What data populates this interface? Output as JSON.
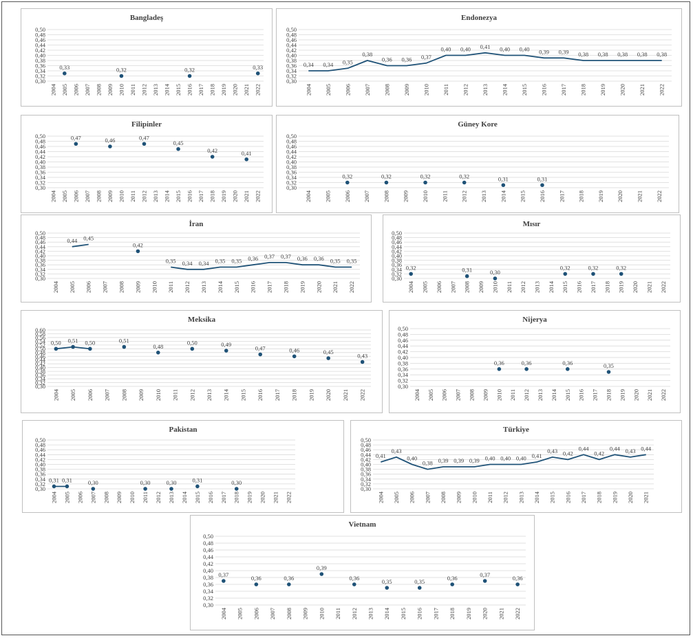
{
  "colors": {
    "series": "#1f5277",
    "grid": "#d9d9d9",
    "text": "#404040",
    "border": "#bfbfbf"
  },
  "chart_data": [
    {
      "id": "bangladesh",
      "type": "scatter",
      "title": "Bangladeş",
      "x": [
        "2004",
        "2005",
        "2006",
        "2007",
        "2008",
        "2009",
        "2010",
        "2011",
        "2012",
        "2013",
        "2014",
        "2015",
        "2016",
        "2017",
        "2018",
        "2019",
        "2020",
        "2021",
        "2022"
      ],
      "ylim": [
        0.3,
        0.5
      ],
      "yticks": [
        "0,30",
        "0,32",
        "0,34",
        "0,36",
        "0,38",
        "0,40",
        "0,42",
        "0,44",
        "0,46",
        "0,48",
        "0,50"
      ],
      "points": [
        {
          "x": "2005",
          "y": 0.33,
          "label": "0,33"
        },
        {
          "x": "2010",
          "y": 0.32,
          "label": "0,32"
        },
        {
          "x": "2016",
          "y": 0.32,
          "label": "0,32"
        },
        {
          "x": "2022",
          "y": 0.33,
          "label": "0,33"
        }
      ]
    },
    {
      "id": "indonesia",
      "type": "line",
      "title": "Endonezya",
      "x": [
        "2004",
        "2005",
        "2006",
        "2007",
        "2008",
        "2009",
        "2010",
        "2011",
        "2012",
        "2013",
        "2014",
        "2015",
        "2016",
        "2017",
        "2018",
        "2019",
        "2020",
        "2021",
        "2022"
      ],
      "ylim": [
        0.3,
        0.5
      ],
      "yticks": [
        "0,30",
        "0,32",
        "0,34",
        "0,36",
        "0,38",
        "0,40",
        "0,42",
        "0,44",
        "0,46",
        "0,48",
        "0,50"
      ],
      "points": [
        {
          "x": "2004",
          "y": 0.34,
          "label": "0,34"
        },
        {
          "x": "2005",
          "y": 0.34,
          "label": "0,34"
        },
        {
          "x": "2006",
          "y": 0.35,
          "label": "0,35"
        },
        {
          "x": "2007",
          "y": 0.38,
          "label": "0,38"
        },
        {
          "x": "2008",
          "y": 0.36,
          "label": "0,36"
        },
        {
          "x": "2009",
          "y": 0.36,
          "label": "0,36"
        },
        {
          "x": "2010",
          "y": 0.37,
          "label": "0,37"
        },
        {
          "x": "2011",
          "y": 0.4,
          "label": "0,40"
        },
        {
          "x": "2012",
          "y": 0.4,
          "label": "0,40"
        },
        {
          "x": "2013",
          "y": 0.41,
          "label": "0,41"
        },
        {
          "x": "2014",
          "y": 0.4,
          "label": "0,40"
        },
        {
          "x": "2015",
          "y": 0.4,
          "label": "0,40"
        },
        {
          "x": "2016",
          "y": 0.39,
          "label": "0,39"
        },
        {
          "x": "2017",
          "y": 0.39,
          "label": "0,39"
        },
        {
          "x": "2018",
          "y": 0.38,
          "label": "0,38"
        },
        {
          "x": "2019",
          "y": 0.38,
          "label": "0,38"
        },
        {
          "x": "2020",
          "y": 0.38,
          "label": "0,38"
        },
        {
          "x": "2021",
          "y": 0.38,
          "label": "0,38"
        },
        {
          "x": "2022",
          "y": 0.38,
          "label": "0,38"
        }
      ]
    },
    {
      "id": "philippines",
      "type": "scatter",
      "title": "Filipinler",
      "x": [
        "2004",
        "2005",
        "2006",
        "2007",
        "2008",
        "2009",
        "2010",
        "2011",
        "2012",
        "2013",
        "2014",
        "2015",
        "2016",
        "2017",
        "2018",
        "2019",
        "2020",
        "2021",
        "2022"
      ],
      "ylim": [
        0.3,
        0.5
      ],
      "yticks": [
        "0,30",
        "0,32",
        "0,34",
        "0,36",
        "0,38",
        "0,40",
        "0,42",
        "0,44",
        "0,46",
        "0,48",
        "0,50"
      ],
      "points": [
        {
          "x": "2006",
          "y": 0.47,
          "label": "0,47"
        },
        {
          "x": "2009",
          "y": 0.46,
          "label": "0,46"
        },
        {
          "x": "2012",
          "y": 0.47,
          "label": "0,47"
        },
        {
          "x": "2015",
          "y": 0.45,
          "label": "0,45"
        },
        {
          "x": "2018",
          "y": 0.42,
          "label": "0,42"
        },
        {
          "x": "2021",
          "y": 0.41,
          "label": "0,41"
        }
      ]
    },
    {
      "id": "south-korea",
      "type": "scatter",
      "title": "Güney Kore",
      "x": [
        "2004",
        "2005",
        "2006",
        "2007",
        "2008",
        "2009",
        "2010",
        "2011",
        "2012",
        "2013",
        "2014",
        "2015",
        "2016",
        "2017",
        "2018",
        "2019",
        "2020",
        "2021",
        "2022"
      ],
      "ylim": [
        0.3,
        0.5
      ],
      "yticks": [
        "0,30",
        "0,32",
        "0,34",
        "0,36",
        "0,38",
        "0,40",
        "0,42",
        "0,44",
        "0,46",
        "0,48",
        "0,50"
      ],
      "points": [
        {
          "x": "2006",
          "y": 0.32,
          "label": "0,32"
        },
        {
          "x": "2008",
          "y": 0.32,
          "label": "0,32"
        },
        {
          "x": "2010",
          "y": 0.32,
          "label": "0,32"
        },
        {
          "x": "2012",
          "y": 0.32,
          "label": "0,32"
        },
        {
          "x": "2014",
          "y": 0.31,
          "label": "0,31"
        },
        {
          "x": "2016",
          "y": 0.31,
          "label": "0,31"
        }
      ]
    },
    {
      "id": "iran",
      "type": "line",
      "title": "İran",
      "x": [
        "2004",
        "2005",
        "2006",
        "2007",
        "2008",
        "2009",
        "2010",
        "2011",
        "2012",
        "2013",
        "2014",
        "2015",
        "2016",
        "2017",
        "2018",
        "2019",
        "2020",
        "2021",
        "2022"
      ],
      "ylim": [
        0.3,
        0.5
      ],
      "yticks": [
        "0,30",
        "0,32",
        "0,34",
        "0,36",
        "0,38",
        "0,40",
        "0,42",
        "0,44",
        "0,46",
        "0,48",
        "0,50"
      ],
      "segments": [
        [
          {
            "x": "2005",
            "y": 0.44,
            "label": "0,44"
          },
          {
            "x": "2006",
            "y": 0.45,
            "label": "0,45"
          }
        ],
        [
          {
            "x": "2009",
            "y": 0.42,
            "label": "0,42"
          }
        ],
        [
          {
            "x": "2011",
            "y": 0.35,
            "label": "0,35"
          },
          {
            "x": "2012",
            "y": 0.34,
            "label": "0,34"
          },
          {
            "x": "2013",
            "y": 0.34,
            "label": "0,34"
          },
          {
            "x": "2014",
            "y": 0.35,
            "label": "0,35"
          },
          {
            "x": "2015",
            "y": 0.35,
            "label": "0,35"
          },
          {
            "x": "2016",
            "y": 0.36,
            "label": "0,36"
          },
          {
            "x": "2017",
            "y": 0.37,
            "label": "0,37"
          },
          {
            "x": "2018",
            "y": 0.37,
            "label": "0,37"
          },
          {
            "x": "2019",
            "y": 0.36,
            "label": "0,36"
          },
          {
            "x": "2020",
            "y": 0.36,
            "label": "0,36"
          },
          {
            "x": "2021",
            "y": 0.35,
            "label": "0,35"
          },
          {
            "x": "2022",
            "y": 0.35,
            "label": "0,35"
          }
        ]
      ]
    },
    {
      "id": "egypt",
      "type": "scatter",
      "title": "Mısır",
      "x": [
        "2004",
        "2005",
        "2006",
        "2007",
        "2008",
        "2009",
        "2010",
        "2011",
        "2012",
        "2013",
        "2014",
        "2015",
        "2016",
        "2017",
        "2018",
        "2019",
        "2020",
        "2021",
        "2022"
      ],
      "ylim": [
        0.3,
        0.5
      ],
      "yticks": [
        "0,30",
        "0,32",
        "0,34",
        "0,36",
        "0,38",
        "0,40",
        "0,42",
        "0,44",
        "0,46",
        "0,48",
        "0,50"
      ],
      "points": [
        {
          "x": "2004",
          "y": 0.32,
          "label": "0,32"
        },
        {
          "x": "2008",
          "y": 0.31,
          "label": "0,31"
        },
        {
          "x": "2010",
          "y": 0.3,
          "label": "0,30"
        },
        {
          "x": "2015",
          "y": 0.32,
          "label": "0,32"
        },
        {
          "x": "2017",
          "y": 0.32,
          "label": "0,32"
        },
        {
          "x": "2019",
          "y": 0.32,
          "label": "0,32"
        }
      ]
    },
    {
      "id": "mexico",
      "type": "scatter",
      "title": "Meksika",
      "x": [
        "2004",
        "2005",
        "2006",
        "2007",
        "2008",
        "2009",
        "2010",
        "2011",
        "2012",
        "2013",
        "2014",
        "2015",
        "2016",
        "2017",
        "2018",
        "2019",
        "2020",
        "2021",
        "2022"
      ],
      "ylim": [
        0.3,
        0.6
      ],
      "yticks": [
        "0,30",
        "0,32",
        "0,34",
        "0,36",
        "0,38",
        "0,40",
        "0,42",
        "0,44",
        "0,46",
        "0,48",
        "0,50",
        "0,52",
        "0,54",
        "0,56",
        "0,58",
        "0,60"
      ],
      "segments": [
        [
          {
            "x": "2004",
            "y": 0.5,
            "label": "0,50"
          },
          {
            "x": "2005",
            "y": 0.51,
            "label": "0,51"
          },
          {
            "x": "2006",
            "y": 0.5,
            "label": "0,50"
          }
        ],
        [
          {
            "x": "2008",
            "y": 0.51,
            "label": "0,51"
          }
        ],
        [
          {
            "x": "2010",
            "y": 0.48,
            "label": "0,48"
          }
        ],
        [
          {
            "x": "2012",
            "y": 0.5,
            "label": "0,50"
          }
        ],
        [
          {
            "x": "2014",
            "y": 0.49,
            "label": "0,49"
          }
        ],
        [
          {
            "x": "2016",
            "y": 0.47,
            "label": "0,47"
          }
        ],
        [
          {
            "x": "2018",
            "y": 0.46,
            "label": "0,46"
          }
        ],
        [
          {
            "x": "2020",
            "y": 0.45,
            "label": "0,45"
          }
        ],
        [
          {
            "x": "2022",
            "y": 0.43,
            "label": "0,43"
          }
        ]
      ]
    },
    {
      "id": "nigeria",
      "type": "scatter",
      "title": "Nijerya",
      "x": [
        "2004",
        "2005",
        "2006",
        "2007",
        "2008",
        "2009",
        "2010",
        "2011",
        "2012",
        "2013",
        "2014",
        "2015",
        "2016",
        "2017",
        "2018",
        "2019",
        "2020",
        "2021",
        "2022"
      ],
      "ylim": [
        0.3,
        0.5
      ],
      "yticks": [
        "0,30",
        "0,32",
        "0,34",
        "0,36",
        "0,38",
        "0,40",
        "0,42",
        "0,44",
        "0,46",
        "0,48",
        "0,50"
      ],
      "points": [
        {
          "x": "2010",
          "y": 0.36,
          "label": "0,36"
        },
        {
          "x": "2012",
          "y": 0.36,
          "label": "0,36"
        },
        {
          "x": "2015",
          "y": 0.36,
          "label": "0,36"
        },
        {
          "x": "2018",
          "y": 0.35,
          "label": "0,35"
        }
      ]
    },
    {
      "id": "pakistan",
      "type": "scatter",
      "title": "Pakistan",
      "x": [
        "2004",
        "2005",
        "2006",
        "2007",
        "2008",
        "2009",
        "2010",
        "2011",
        "2012",
        "2013",
        "2014",
        "2015",
        "2016",
        "2017",
        "2018",
        "2019",
        "2020",
        "2021",
        "2022"
      ],
      "ylim": [
        0.3,
        0.5
      ],
      "yticks": [
        "0,30",
        "0,32",
        "0,34",
        "0,36",
        "0,38",
        "0,40",
        "0,42",
        "0,44",
        "0,46",
        "0,48",
        "0,50"
      ],
      "segments": [
        [
          {
            "x": "2004",
            "y": 0.31,
            "label": "0,31"
          },
          {
            "x": "2005",
            "y": 0.31,
            "label": "0,31"
          }
        ],
        [
          {
            "x": "2007",
            "y": 0.3,
            "label": "0,30"
          }
        ],
        [
          {
            "x": "2011",
            "y": 0.3,
            "label": "0,30"
          }
        ],
        [
          {
            "x": "2013",
            "y": 0.3,
            "label": "0,30"
          }
        ],
        [
          {
            "x": "2015",
            "y": 0.31,
            "label": "0,31"
          }
        ],
        [
          {
            "x": "2018",
            "y": 0.3,
            "label": "0,30"
          }
        ]
      ]
    },
    {
      "id": "turkiye",
      "type": "line",
      "title": "Türkiye",
      "x": [
        "2004",
        "2005",
        "2006",
        "2007",
        "2008",
        "2009",
        "2010",
        "2011",
        "2012",
        "2013",
        "2014",
        "2015",
        "2016",
        "2017",
        "2018",
        "2019",
        "2020",
        "2021"
      ],
      "ylim": [
        0.3,
        0.5
      ],
      "yticks": [
        "0,30",
        "0,32",
        "0,34",
        "0,36",
        "0,38",
        "0,40",
        "0,42",
        "0,44",
        "0,46",
        "0,48",
        "0,50"
      ],
      "points": [
        {
          "x": "2004",
          "y": 0.41,
          "label": "0,41"
        },
        {
          "x": "2005",
          "y": 0.43,
          "label": "0,43"
        },
        {
          "x": "2006",
          "y": 0.4,
          "label": "0,40"
        },
        {
          "x": "2007",
          "y": 0.38,
          "label": "0,38"
        },
        {
          "x": "2008",
          "y": 0.39,
          "label": "0,39"
        },
        {
          "x": "2009",
          "y": 0.39,
          "label": "0,39"
        },
        {
          "x": "2010",
          "y": 0.39,
          "label": "0,39"
        },
        {
          "x": "2011",
          "y": 0.4,
          "label": "0,40"
        },
        {
          "x": "2012",
          "y": 0.4,
          "label": "0,40"
        },
        {
          "x": "2013",
          "y": 0.4,
          "label": "0,40"
        },
        {
          "x": "2014",
          "y": 0.41,
          "label": "0,41"
        },
        {
          "x": "2015",
          "y": 0.43,
          "label": "0,43"
        },
        {
          "x": "2016",
          "y": 0.42,
          "label": "0,42"
        },
        {
          "x": "2017",
          "y": 0.44,
          "label": "0,44"
        },
        {
          "x": "2018",
          "y": 0.42,
          "label": "0,42"
        },
        {
          "x": "2019",
          "y": 0.44,
          "label": "0,44"
        },
        {
          "x": "2020",
          "y": 0.43,
          "label": "0,43"
        },
        {
          "x": "2021",
          "y": 0.44,
          "label": "0,44"
        }
      ]
    },
    {
      "id": "vietnam",
      "type": "scatter",
      "title": "Vietnam",
      "x": [
        "2004",
        "2005",
        "2006",
        "2007",
        "2008",
        "2009",
        "2010",
        "2011",
        "2012",
        "2013",
        "2014",
        "2015",
        "2016",
        "2017",
        "2018",
        "2019",
        "2020",
        "2021",
        "2022"
      ],
      "ylim": [
        0.3,
        0.5
      ],
      "yticks": [
        "0,30",
        "0,32",
        "0,34",
        "0,36",
        "0,38",
        "0,40",
        "0,42",
        "0,44",
        "0,46",
        "0,48",
        "0,50"
      ],
      "points": [
        {
          "x": "2004",
          "y": 0.37,
          "label": "0,37"
        },
        {
          "x": "2006",
          "y": 0.36,
          "label": "0,36"
        },
        {
          "x": "2008",
          "y": 0.36,
          "label": "0,36"
        },
        {
          "x": "2010",
          "y": 0.39,
          "label": "0,39"
        },
        {
          "x": "2012",
          "y": 0.36,
          "label": "0,36"
        },
        {
          "x": "2014",
          "y": 0.35,
          "label": "0,35"
        },
        {
          "x": "2016",
          "y": 0.35,
          "label": "0,35"
        },
        {
          "x": "2018",
          "y": 0.36,
          "label": "0,36"
        },
        {
          "x": "2020",
          "y": 0.37,
          "label": "0,37"
        },
        {
          "x": "2022",
          "y": 0.36,
          "label": "0,36"
        }
      ]
    }
  ]
}
